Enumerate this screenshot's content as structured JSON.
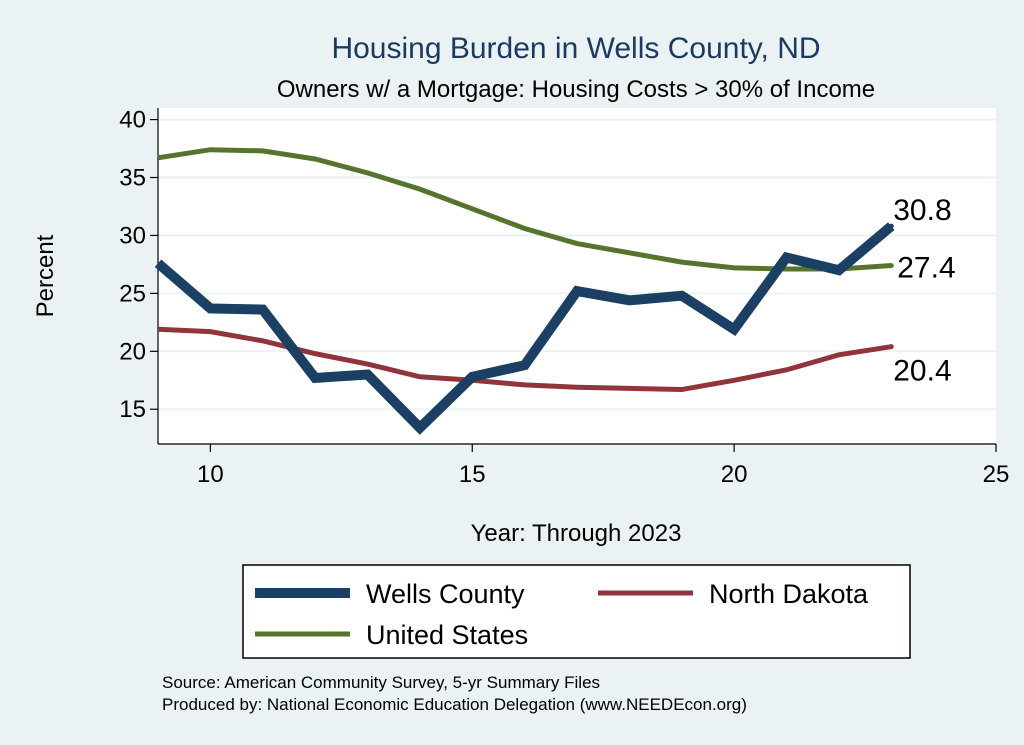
{
  "chart_data": {
    "type": "line",
    "title": "Housing Burden in Wells County, ND",
    "subtitle": "Owners w/ a Mortgage: Housing Costs > 30% of Income",
    "xlabel": "Year: Through 2023",
    "ylabel": "Percent",
    "xlim": [
      9,
      25
    ],
    "ylim": [
      12,
      41
    ],
    "xticks": [
      10,
      15,
      20,
      25
    ],
    "yticks": [
      15,
      20,
      25,
      30,
      35,
      40
    ],
    "x": [
      9,
      10,
      11,
      12,
      13,
      14,
      15,
      16,
      17,
      18,
      19,
      20,
      21,
      22,
      23
    ],
    "series": [
      {
        "name": "Wells County",
        "color": "#1b4064",
        "values": [
          27.6,
          23.7,
          23.6,
          17.7,
          18.0,
          13.4,
          17.8,
          18.8,
          25.2,
          24.4,
          24.8,
          21.9,
          28.1,
          27.0,
          30.8
        ],
        "end_label": "30.8"
      },
      {
        "name": "North Dakota",
        "color": "#90353b",
        "values": [
          21.9,
          21.7,
          20.9,
          19.8,
          18.9,
          17.8,
          17.5,
          17.1,
          16.9,
          16.8,
          16.7,
          17.5,
          18.4,
          19.7,
          20.4
        ],
        "end_label": "20.4"
      },
      {
        "name": "United States",
        "color": "#55752f",
        "values": [
          36.7,
          37.4,
          37.3,
          36.6,
          35.4,
          34.0,
          32.3,
          30.6,
          29.3,
          28.5,
          27.7,
          27.2,
          27.1,
          27.1,
          27.4
        ],
        "end_label": "27.4"
      }
    ],
    "legend": [
      "Wells County",
      "North Dakota",
      "United States"
    ],
    "grid": true,
    "legend_position": "bottom"
  },
  "notes": {
    "source": "Source: American Community Survey, 5-yr Summary Files",
    "produced": "Produced by: National Economic Education Delegation (www.NEEDEcon.org)"
  }
}
